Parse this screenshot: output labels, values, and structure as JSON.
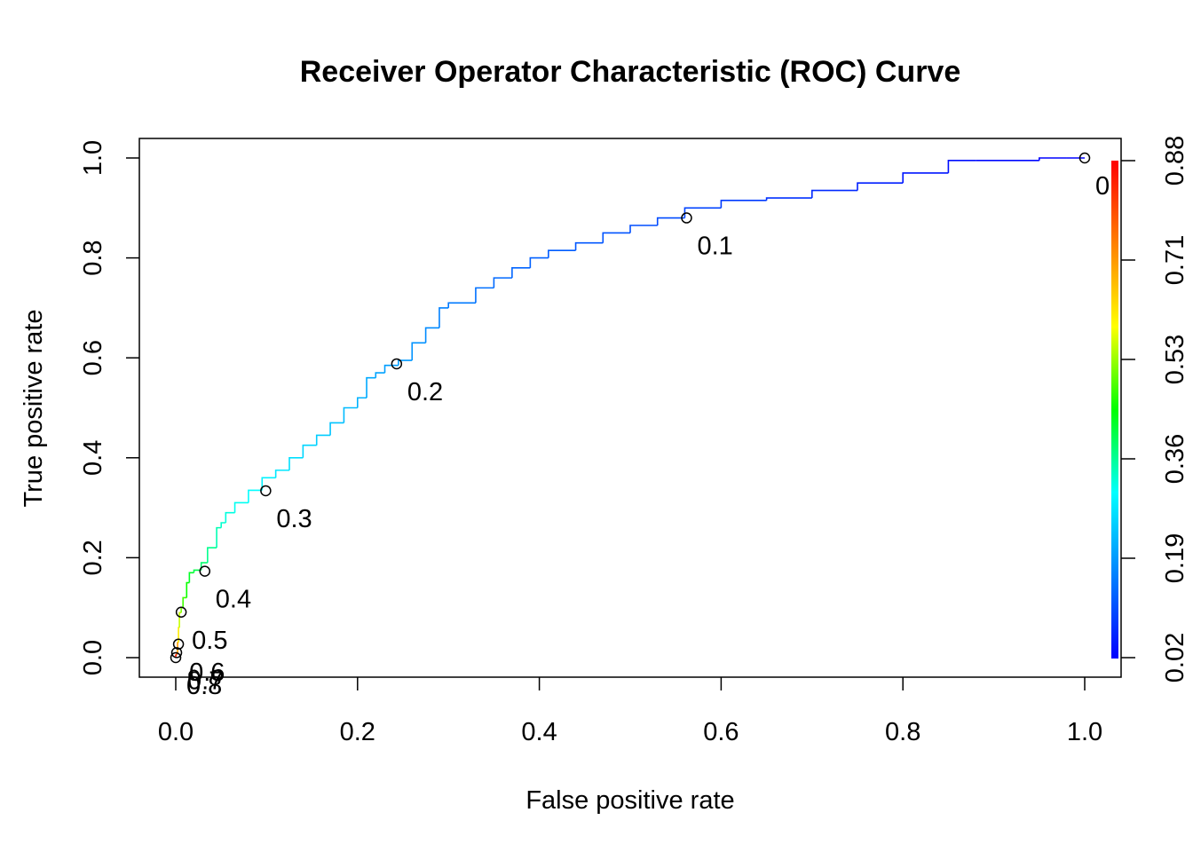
{
  "chart_data": {
    "type": "line",
    "title": "Receiver Operator Characteristic (ROC) Curve",
    "xlabel": "False positive rate",
    "ylabel": "True positive rate",
    "xlim": [
      0.0,
      1.0
    ],
    "ylim": [
      0.0,
      1.0
    ],
    "x_ticks": [
      "0.0",
      "0.2",
      "0.4",
      "0.6",
      "0.8",
      "1.0"
    ],
    "y_ticks": [
      "0.0",
      "0.2",
      "0.4",
      "0.6",
      "0.8",
      "1.0"
    ],
    "grid": false,
    "curve": {
      "fpr": [
        0.0,
        0.001,
        0.002,
        0.003,
        0.004,
        0.006,
        0.008,
        0.012,
        0.015,
        0.02,
        0.028,
        0.035,
        0.045,
        0.05,
        0.055,
        0.065,
        0.08,
        0.095,
        0.11,
        0.125,
        0.14,
        0.155,
        0.17,
        0.185,
        0.2,
        0.21,
        0.22,
        0.23,
        0.245,
        0.26,
        0.275,
        0.29,
        0.3,
        0.33,
        0.35,
        0.37,
        0.39,
        0.41,
        0.44,
        0.47,
        0.5,
        0.53,
        0.56,
        0.6,
        0.65,
        0.7,
        0.75,
        0.8,
        0.85,
        0.88,
        0.95,
        0.98,
        1.0
      ],
      "tpr": [
        0.0,
        0.005,
        0.01,
        0.03,
        0.06,
        0.09,
        0.1,
        0.12,
        0.15,
        0.17,
        0.175,
        0.19,
        0.22,
        0.26,
        0.27,
        0.29,
        0.31,
        0.335,
        0.36,
        0.375,
        0.4,
        0.425,
        0.445,
        0.47,
        0.5,
        0.52,
        0.56,
        0.57,
        0.585,
        0.595,
        0.63,
        0.66,
        0.7,
        0.71,
        0.74,
        0.76,
        0.78,
        0.8,
        0.815,
        0.83,
        0.85,
        0.865,
        0.88,
        0.9,
        0.915,
        0.92,
        0.935,
        0.95,
        0.97,
        0.995,
        0.995,
        1.0,
        1.0
      ],
      "cutoff": [
        0.88,
        0.82,
        0.76,
        0.65,
        0.58,
        0.54,
        0.5,
        0.47,
        0.44,
        0.42,
        0.4,
        0.38,
        0.36,
        0.34,
        0.33,
        0.32,
        0.31,
        0.3,
        0.285,
        0.275,
        0.265,
        0.255,
        0.245,
        0.235,
        0.225,
        0.215,
        0.205,
        0.2,
        0.195,
        0.19,
        0.18,
        0.17,
        0.16,
        0.15,
        0.14,
        0.135,
        0.13,
        0.125,
        0.12,
        0.115,
        0.11,
        0.105,
        0.1,
        0.09,
        0.08,
        0.07,
        0.06,
        0.05,
        0.04,
        0.03,
        0.025,
        0.02,
        0.0
      ]
    },
    "cutoff_points": [
      {
        "label": "0",
        "fpr": 1.0,
        "tpr": 1.0
      },
      {
        "label": "0.1",
        "fpr": 0.562,
        "tpr": 0.88
      },
      {
        "label": "0.2",
        "fpr": 0.243,
        "tpr": 0.588
      },
      {
        "label": "0.3",
        "fpr": 0.099,
        "tpr": 0.334
      },
      {
        "label": "0.4",
        "fpr": 0.032,
        "tpr": 0.173
      },
      {
        "label": "0.5",
        "fpr": 0.006,
        "tpr": 0.091
      },
      {
        "label": "0.6",
        "fpr": 0.003,
        "tpr": 0.027
      },
      {
        "label": "0.7",
        "fpr": 0.001,
        "tpr": 0.01
      },
      {
        "label": "0.8",
        "fpr": 0.0,
        "tpr": 0.0
      },
      {
        "label": "",
        "fpr": 0.02,
        "tpr": -0.035
      },
      {
        "label": "",
        "fpr": 0.045,
        "tpr": -0.035
      }
    ],
    "colorbar": {
      "labels": [
        "0.02",
        "0.19",
        "0.36",
        "0.53",
        "0.71",
        "0.88"
      ],
      "range": [
        0.02,
        0.88
      ],
      "colors": [
        "#0000ff",
        "#0080ff",
        "#00ffff",
        "#00ff00",
        "#ffff00",
        "#ff8000",
        "#ff0000"
      ]
    },
    "line_color_scale": "cutoff mapped to rainbow (blue=low, red=high)"
  }
}
